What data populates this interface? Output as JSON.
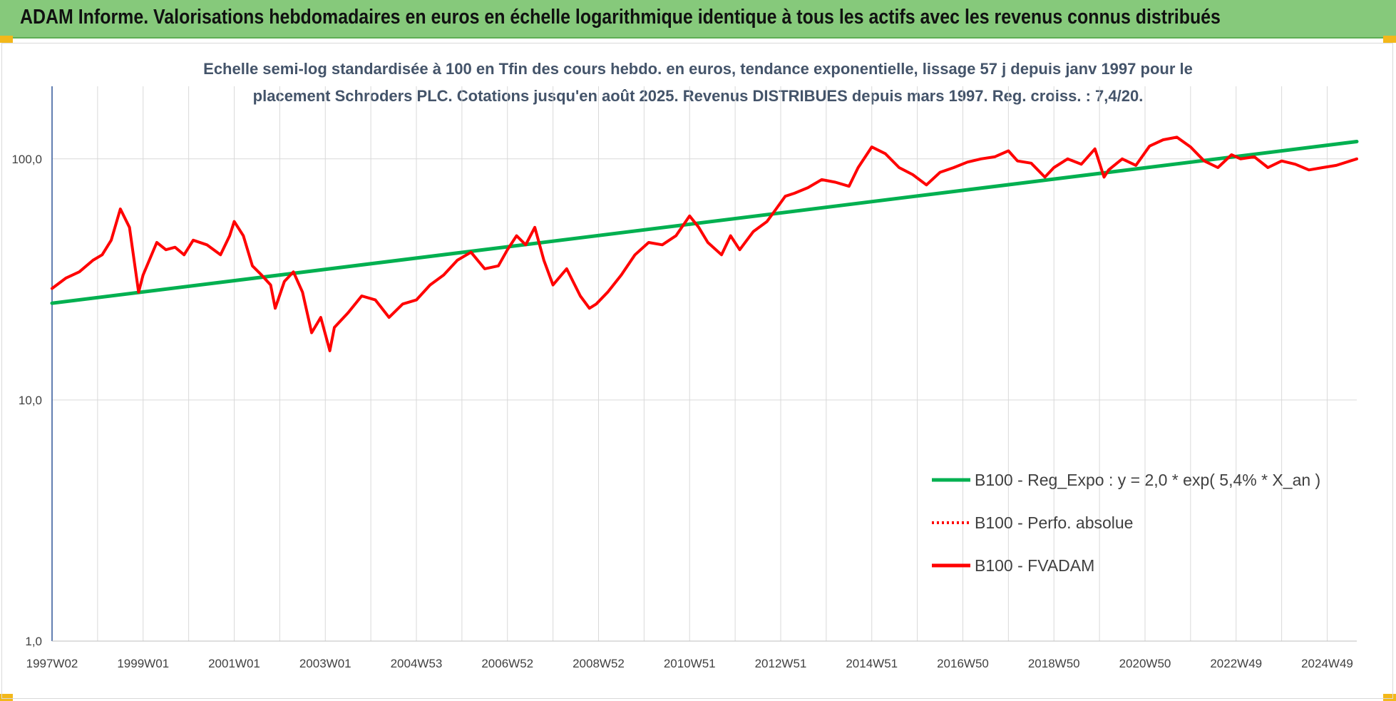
{
  "banner": {
    "title": "ADAM Informe. Valorisations hebdomadaires en euros en échelle logarithmique identique à tous les actifs avec les revenus connus distribués",
    "background": "#86c97b"
  },
  "chart_data": {
    "type": "line",
    "title_lines": [
      "Echelle semi-log standardisée à 100 en Tfin des cours hebdo. en euros, tendance exponentielle, lissage 57 j depuis janv 1997 pour le",
      "placement Schroders PLC. Cotations jusqu'en août 2025. Revenus DISTRIBUES depuis mars 1997. Reg. croiss. : 7,4/20."
    ],
    "y_scale": "log",
    "ylim": [
      1,
      200
    ],
    "y_ticks": [
      "1,0",
      "10,0",
      "100,0"
    ],
    "y_tick_values": [
      1,
      10,
      100
    ],
    "x_range": [
      1997.0,
      2025.65
    ],
    "x_ticks": [
      "1997W02",
      "1999W01",
      "2001W01",
      "2003W01",
      "2004W53",
      "2006W52",
      "2008W52",
      "2010W51",
      "2012W51",
      "2014W51",
      "2016W50",
      "2018W50",
      "2020W50",
      "2022W49",
      "2024W49"
    ],
    "x_tick_years": [
      1997.0,
      1999.0,
      2001.0,
      2003.0,
      2005.0,
      2007.0,
      2009.0,
      2011.0,
      2013.0,
      2015.0,
      2017.0,
      2019.0,
      2021.0,
      2023.0,
      2025.0
    ],
    "grid": true,
    "legend_position": "lower-right",
    "series": [
      {
        "name": "B100 - Reg_Expo : y = 2,0 * exp( 5,4% *  X_an )",
        "color": "#00b050",
        "style": "solid",
        "x": [
          1997.0,
          2025.65
        ],
        "y": [
          25.2,
          118
        ]
      },
      {
        "name": "B100 - Perfo. absolue",
        "color": "#ff0000",
        "style": "dotted",
        "x": [],
        "y": []
      },
      {
        "name": "B100 - FVADAM",
        "color": "#ff0000",
        "style": "solid",
        "x": [
          1997.0,
          1997.3,
          1997.6,
          1997.9,
          1998.1,
          1998.3,
          1998.5,
          1998.7,
          1998.9,
          1999.0,
          1999.3,
          1999.5,
          1999.7,
          1999.9,
          2000.1,
          2000.4,
          2000.7,
          2000.9,
          2001.0,
          2001.2,
          2001.4,
          2001.6,
          2001.8,
          2001.9,
          2002.1,
          2002.3,
          2002.5,
          2002.7,
          2002.9,
          2003.1,
          2003.2,
          2003.5,
          2003.8,
          2004.1,
          2004.4,
          2004.7,
          2005.0,
          2005.3,
          2005.6,
          2005.9,
          2006.2,
          2006.5,
          2006.8,
          2007.0,
          2007.2,
          2007.4,
          2007.6,
          2007.8,
          2008.0,
          2008.3,
          2008.6,
          2008.8,
          2008.95,
          2009.2,
          2009.5,
          2009.8,
          2010.1,
          2010.4,
          2010.7,
          2011.0,
          2011.2,
          2011.4,
          2011.7,
          2011.9,
          2012.1,
          2012.4,
          2012.7,
          2012.9,
          2013.1,
          2013.3,
          2013.6,
          2013.9,
          2014.2,
          2014.5,
          2014.7,
          2015.0,
          2015.3,
          2015.6,
          2015.9,
          2016.2,
          2016.5,
          2016.8,
          2017.1,
          2017.4,
          2017.7,
          2018.0,
          2018.2,
          2018.5,
          2018.8,
          2019.0,
          2019.3,
          2019.6,
          2019.9,
          2020.1,
          2020.2,
          2020.5,
          2020.8,
          2021.1,
          2021.4,
          2021.7,
          2022.0,
          2022.3,
          2022.6,
          2022.9,
          2023.1,
          2023.4,
          2023.7,
          2024.0,
          2024.3,
          2024.6,
          2024.9,
          2025.2,
          2025.65
        ],
        "y": [
          29,
          32,
          34,
          38,
          40,
          46,
          62,
          52,
          28,
          33,
          45,
          42,
          43,
          40,
          46,
          44,
          40,
          48,
          55,
          48,
          36,
          33,
          30,
          24,
          31,
          34,
          28,
          19,
          22,
          16,
          20,
          23,
          27,
          26,
          22,
          25,
          26,
          30,
          33,
          38,
          41,
          35,
          36,
          42,
          48,
          44,
          52,
          38,
          30,
          35,
          27,
          24,
          25,
          28,
          33,
          40,
          45,
          44,
          48,
          58,
          52,
          45,
          40,
          48,
          42,
          50,
          55,
          62,
          70,
          72,
          76,
          82,
          80,
          77,
          92,
          112,
          105,
          92,
          86,
          78,
          88,
          92,
          97,
          100,
          102,
          108,
          98,
          96,
          84,
          92,
          100,
          95,
          110,
          84,
          90,
          100,
          94,
          113,
          120,
          123,
          112,
          98,
          92,
          104,
          100,
          102,
          92,
          98,
          95,
          90,
          92,
          94,
          100
        ]
      }
    ]
  }
}
